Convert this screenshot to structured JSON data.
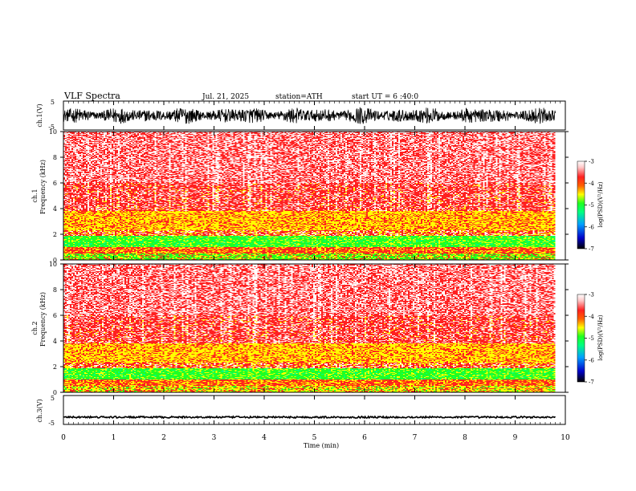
{
  "header": {
    "title": "VLF  Spectra",
    "date": "Jul.  21,  2025",
    "station": "station=ATH",
    "start": "start  UT  =    6  :40:0"
  },
  "chart_data": [
    {
      "type": "line",
      "panel": "ch1-waveform",
      "ylabel": "ch.1(V)",
      "ylim": [
        -5,
        5
      ],
      "yticks": [
        "5",
        "-5"
      ],
      "xlim": [
        0,
        9.8
      ],
      "series": [
        {
          "amplitude_envelope_V": 3.0,
          "mean_V": 0.0
        }
      ],
      "color": "#000000"
    },
    {
      "type": "heatmap",
      "panel": "ch1-spectrogram",
      "ylabel": [
        "ch.1",
        "Frequency  (kHz)"
      ],
      "ylim": [
        0,
        10
      ],
      "yticks": [
        "0",
        "2",
        "4",
        "6",
        "8",
        "10"
      ],
      "xlim": [
        0,
        9.8
      ],
      "colorbar": {
        "label": "log(PSD)(V²/Hz)",
        "range": [
          -7,
          -3
        ],
        "ticks": [
          "-3",
          "-4",
          "-5",
          "-6",
          "-7"
        ]
      },
      "bands": [
        {
          "f_lo": 0.0,
          "f_hi": 0.5,
          "level": "green/yellow"
        },
        {
          "f_lo": 0.5,
          "f_hi": 1.0,
          "level": "yellow/red"
        },
        {
          "f_lo": 1.0,
          "f_hi": 1.9,
          "level": "green"
        },
        {
          "f_lo": 2.3,
          "f_hi": 3.8,
          "level": "yellow"
        },
        {
          "f_lo": 3.8,
          "f_hi": 10.0,
          "level": "red/white"
        }
      ]
    },
    {
      "type": "heatmap",
      "panel": "ch2-spectrogram",
      "ylabel": [
        "ch.2",
        "Frequency  (kHz)"
      ],
      "ylim": [
        0,
        10
      ],
      "yticks": [
        "0",
        "2",
        "4",
        "6",
        "8",
        "10"
      ],
      "xlim": [
        0,
        9.8
      ],
      "colorbar": {
        "label": "log(PSD)(V²/Hz)",
        "range": [
          -7,
          -3
        ],
        "ticks": [
          "-3",
          "-4",
          "-5",
          "-6",
          "-7"
        ]
      },
      "bands": [
        {
          "f_lo": 0.0,
          "f_hi": 0.5,
          "level": "yellow/red"
        },
        {
          "f_lo": 0.9,
          "f_hi": 1.9,
          "level": "green"
        },
        {
          "f_lo": 2.2,
          "f_hi": 3.8,
          "level": "yellow"
        },
        {
          "f_lo": 3.8,
          "f_hi": 10.0,
          "level": "red/white"
        }
      ]
    },
    {
      "type": "line",
      "panel": "ch3-waveform",
      "ylabel": "ch.3(V)",
      "ylim": [
        -5,
        5
      ],
      "yticks": [
        "5",
        "-5"
      ],
      "xlim": [
        0,
        9.8
      ],
      "series": [
        {
          "mean_V": -2.5,
          "amplitude_envelope_V": 0.3
        }
      ],
      "color": "#000000"
    }
  ],
  "xaxis": {
    "label": "Time  (min)",
    "range": [
      0,
      10
    ],
    "ticks": [
      "0",
      "1",
      "2",
      "3",
      "4",
      "5",
      "6",
      "7",
      "8",
      "9",
      "10"
    ]
  },
  "colors": {
    "colorscale": [
      "#000000",
      "#0000c8",
      "#00a0ff",
      "#00ff80",
      "#20ff20",
      "#ffff00",
      "#ff6000",
      "#ff2020",
      "#ffc8c8",
      "#ffffff"
    ]
  }
}
